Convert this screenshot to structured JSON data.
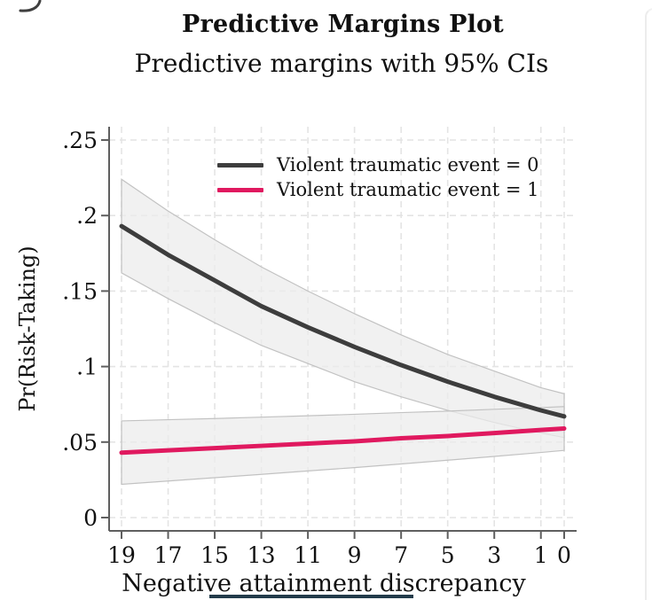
{
  "colors": {
    "background": "#ffffff",
    "text": "#111111",
    "axis": "#5f5f5f",
    "grid": "#e4e4e4",
    "ci_fill": "#ebebeb",
    "ci_edge": "#c2c2c2",
    "right_panel_edge": "#ececec",
    "bottom_bar": "#223b4a",
    "corner_mark": "#3f3f3f"
  },
  "chart_data": {
    "type": "line",
    "title": "Predictive Margins Plot",
    "subtitle": "Predictive margins with 95% CIs",
    "xlabel": "Negative attainment discrepancy",
    "ylabel": "Pr(Risk-Taking)",
    "xlim": [
      19,
      0
    ],
    "ylim": [
      0,
      0.25
    ],
    "x_axis_reversed": true,
    "grid": true,
    "legend_position": "top-inside",
    "x_ticks": [
      19,
      17,
      15,
      13,
      11,
      9,
      7,
      5,
      3,
      1,
      0
    ],
    "x_tick_labels": [
      "19",
      "17",
      "15",
      "13",
      "11",
      "9",
      "7",
      "5",
      "3",
      "1",
      "0"
    ],
    "y_ticks": [
      0,
      0.05,
      0.1,
      0.15,
      0.2,
      0.25
    ],
    "y_tick_labels": [
      "0",
      ".05",
      ".1",
      ".15",
      ".2",
      ".25"
    ],
    "x": [
      19,
      17,
      15,
      13,
      11,
      9,
      7,
      5,
      3,
      1,
      0
    ],
    "series": [
      {
        "name": "Violent traumatic event = 0",
        "color": "#3d3d3d",
        "values": [
          0.193,
          0.174,
          0.157,
          0.14,
          0.126,
          0.113,
          0.101,
          0.09,
          0.08,
          0.071,
          0.067
        ],
        "ci_upper": [
          0.224,
          0.203,
          0.184,
          0.166,
          0.15,
          0.135,
          0.121,
          0.108,
          0.097,
          0.086,
          0.082
        ],
        "ci_lower": [
          0.162,
          0.145,
          0.129,
          0.114,
          0.102,
          0.09,
          0.08,
          0.071,
          0.063,
          0.056,
          0.053
        ]
      },
      {
        "name": "Violent traumatic event = 1",
        "color": "#e0195f",
        "values": [
          0.043,
          0.0445,
          0.046,
          0.0475,
          0.049,
          0.0505,
          0.0525,
          0.054,
          0.056,
          0.058,
          0.059
        ],
        "ci_upper": [
          0.064,
          0.0648,
          0.0656,
          0.0665,
          0.0674,
          0.0684,
          0.0695,
          0.0705,
          0.0717,
          0.0728,
          0.0735
        ],
        "ci_lower": [
          0.022,
          0.0242,
          0.0264,
          0.0286,
          0.0309,
          0.0331,
          0.0355,
          0.038,
          0.0405,
          0.0431,
          0.0445
        ]
      }
    ]
  }
}
